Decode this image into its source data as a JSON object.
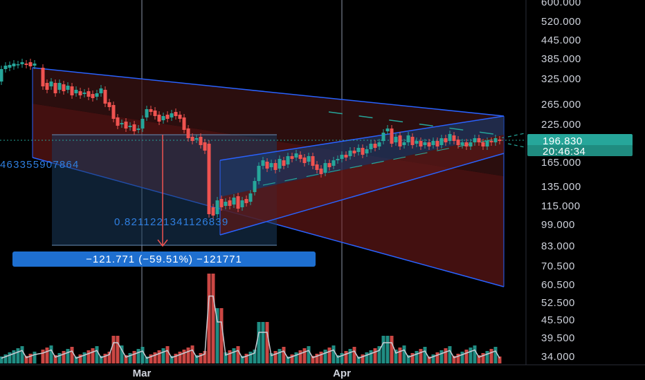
{
  "chart_data": {
    "type": "candlestick",
    "y_scale": "log",
    "y_ticks": [
      "600.000",
      "520.000",
      "445.000",
      "385.000",
      "325.000",
      "265.000",
      "225.000",
      "165.000",
      "135.000",
      "115.000",
      "99.000",
      "83.000",
      "70.500",
      "60.500",
      "52.500",
      "45.500",
      "39.500",
      "34.000"
    ],
    "x_ticks": [
      "Mar",
      "Apr"
    ],
    "last_price": "196.830",
    "countdown": "20:46:34",
    "measure_label": "−121.771 (−59.51%) −121771",
    "fib_label_left": "463355907864",
    "fib_label_mid": "0.8211221341126839",
    "colors": {
      "up": "#26a69a",
      "down": "#ef5350",
      "channel": "#2962ff",
      "measure": "#1e6fd0",
      "vline": "#5d6470"
    }
  }
}
